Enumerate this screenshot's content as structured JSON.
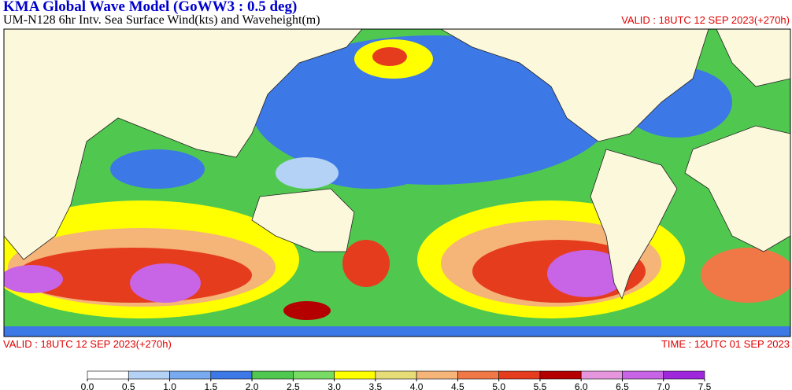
{
  "header": {
    "title": "KMA  Global Wave Model (GoWW3 : 0.5 deg)",
    "subtitle": "UM-N128  6hr Intv. Sea Surface Wind(kts) and Waveheight(m)",
    "valid_top": "VALID : 18UTC 12 SEP 2023(+270h)"
  },
  "footer": {
    "valid": "VALID : 18UTC 12 SEP 2023(+270h)",
    "time": "TIME : 12UTC 01 SEP 2023"
  },
  "colorbar": {
    "ticks": [
      {
        "value": 0,
        "label": "0.0"
      },
      {
        "value": 0.5,
        "label": "0.5"
      },
      {
        "value": 1,
        "label": "1.0"
      },
      {
        "value": 1.5,
        "label": "1.5"
      },
      {
        "value": 2,
        "label": "2.0"
      },
      {
        "value": 2.5,
        "label": "2.5"
      },
      {
        "value": 3,
        "label": "3.0"
      },
      {
        "value": 3.5,
        "label": "3.5"
      },
      {
        "value": 4,
        "label": "4.0"
      },
      {
        "value": 4.5,
        "label": "4.5"
      },
      {
        "value": 5,
        "label": "5.0"
      },
      {
        "value": 5.5,
        "label": "5.5"
      },
      {
        "value": 6,
        "label": "6.0"
      },
      {
        "value": 6.5,
        "label": "6.5"
      },
      {
        "value": 7,
        "label": "7.0"
      },
      {
        "value": 7.5,
        "label": "7.5"
      }
    ],
    "colors": [
      "#ffffff",
      "#b4d2f5",
      "#78aaf0",
      "#3c78e6",
      "#50c850",
      "#78dc64",
      "#ffff00",
      "#e6dc78",
      "#f5b478",
      "#f07846",
      "#e63c1e",
      "#b40000",
      "#e696dc",
      "#c864e6",
      "#a028dc"
    ]
  }
}
